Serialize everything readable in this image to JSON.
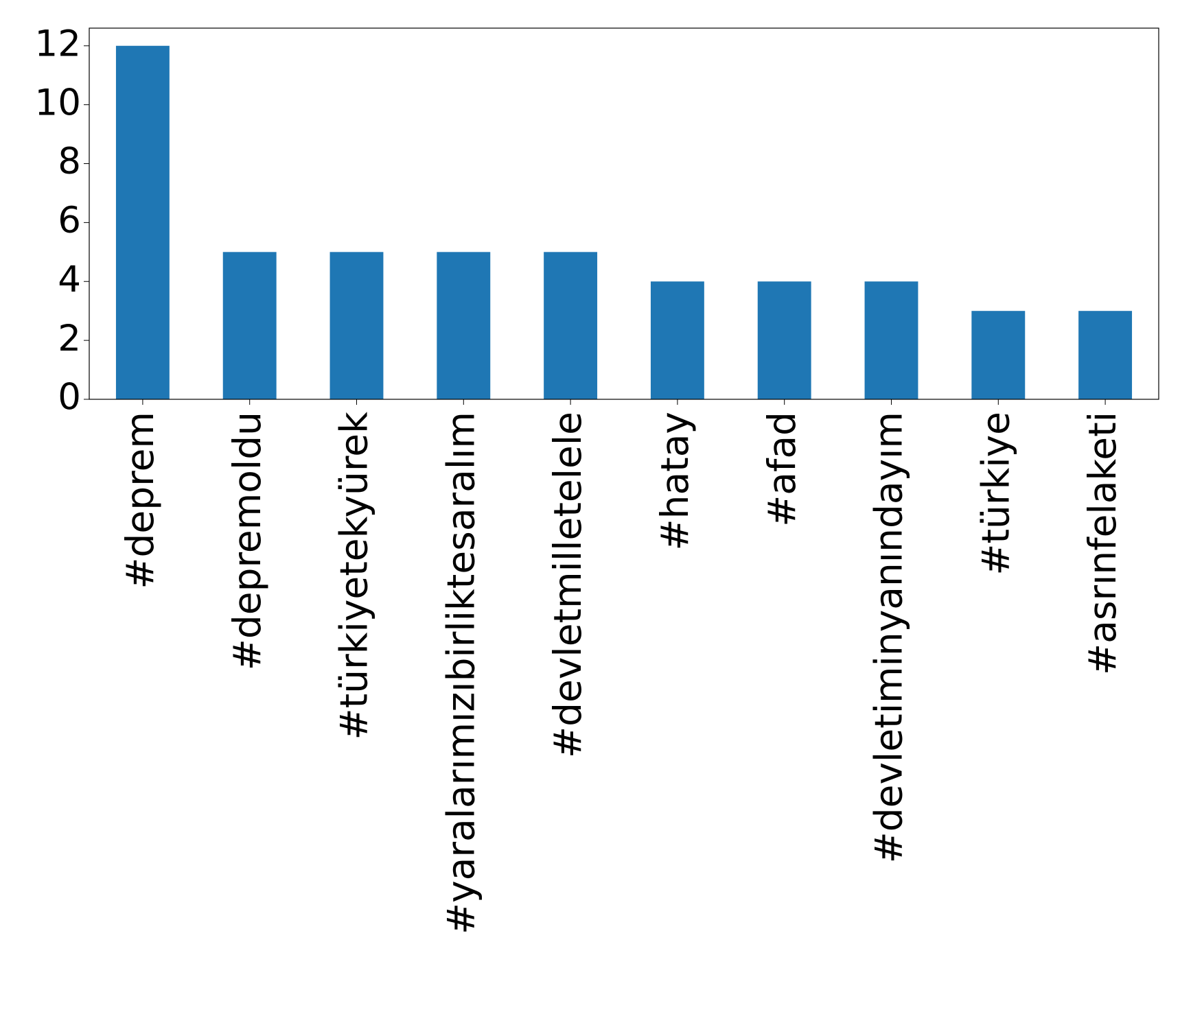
{
  "chart_data": {
    "type": "bar",
    "categories": [
      "#deprem",
      "#depremoldu",
      "#türkiyetekyürek",
      "#yaralarımızıbirliktesaralım",
      "#devletmilletelele",
      "#hatay",
      "#afad",
      "#devletiminyanındayım",
      "#türkiye",
      "#asrınfelaketi"
    ],
    "values": [
      12,
      5,
      5,
      5,
      5,
      4,
      4,
      4,
      3,
      3
    ],
    "color": "#1f77b4",
    "ylim": [
      0,
      12.6
    ],
    "yticks": [
      0,
      2,
      4,
      6,
      8,
      10,
      12
    ],
    "grid": false
  }
}
